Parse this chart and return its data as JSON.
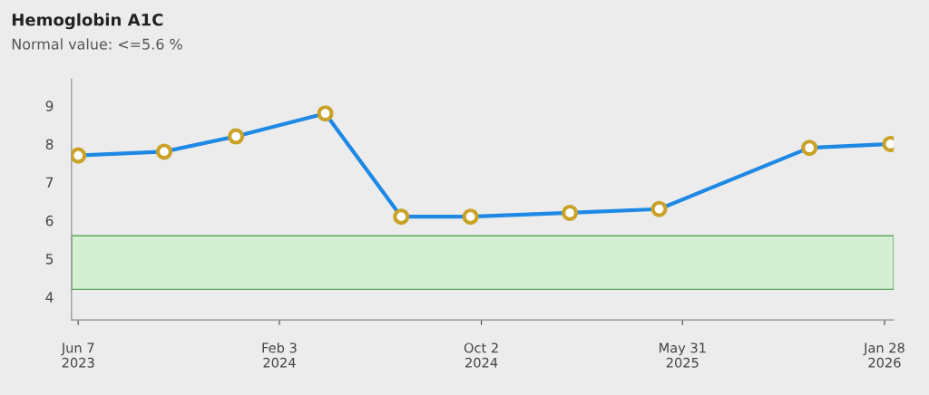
{
  "chart_data": {
    "type": "line",
    "title": "Hemoglobin A1C",
    "subtitle": "Normal value: <=5.6 %",
    "x": [
      "2023-06-07",
      "2023-09-18",
      "2023-12-13",
      "2024-03-29",
      "2024-06-28",
      "2024-09-19",
      "2025-01-16",
      "2025-05-03",
      "2025-10-30",
      "2026-02-04"
    ],
    "series": [
      {
        "color": "#1e88e5",
        "values": [
          7.7,
          7.8,
          8.2,
          8.8,
          6.1,
          6.1,
          6.2,
          6.3,
          7.9,
          8.0
        ]
      }
    ],
    "marker": "circle",
    "line_style": "solid",
    "grid": false,
    "xlim": [
      "2023-05-30",
      "2026-02-08"
    ],
    "xticks": [
      {
        "value": "2023-06-07",
        "label": "Jun 7\n2023"
      },
      {
        "value": "2024-02-03",
        "label": "Feb 3\n2024"
      },
      {
        "value": "2024-10-02",
        "label": "Oct 2\n2024"
      },
      {
        "value": "2025-05-31",
        "label": "May 31\n2025"
      },
      {
        "value": "2026-01-28",
        "label": "Jan 28\n2026"
      }
    ],
    "ylim": [
      3.4,
      9.7
    ],
    "yticks": [
      4,
      5,
      6,
      7,
      8,
      9
    ],
    "bands": [
      {
        "axis": "y",
        "from": 4.2,
        "to": 5.6,
        "color": "#d5efd5"
      }
    ]
  }
}
